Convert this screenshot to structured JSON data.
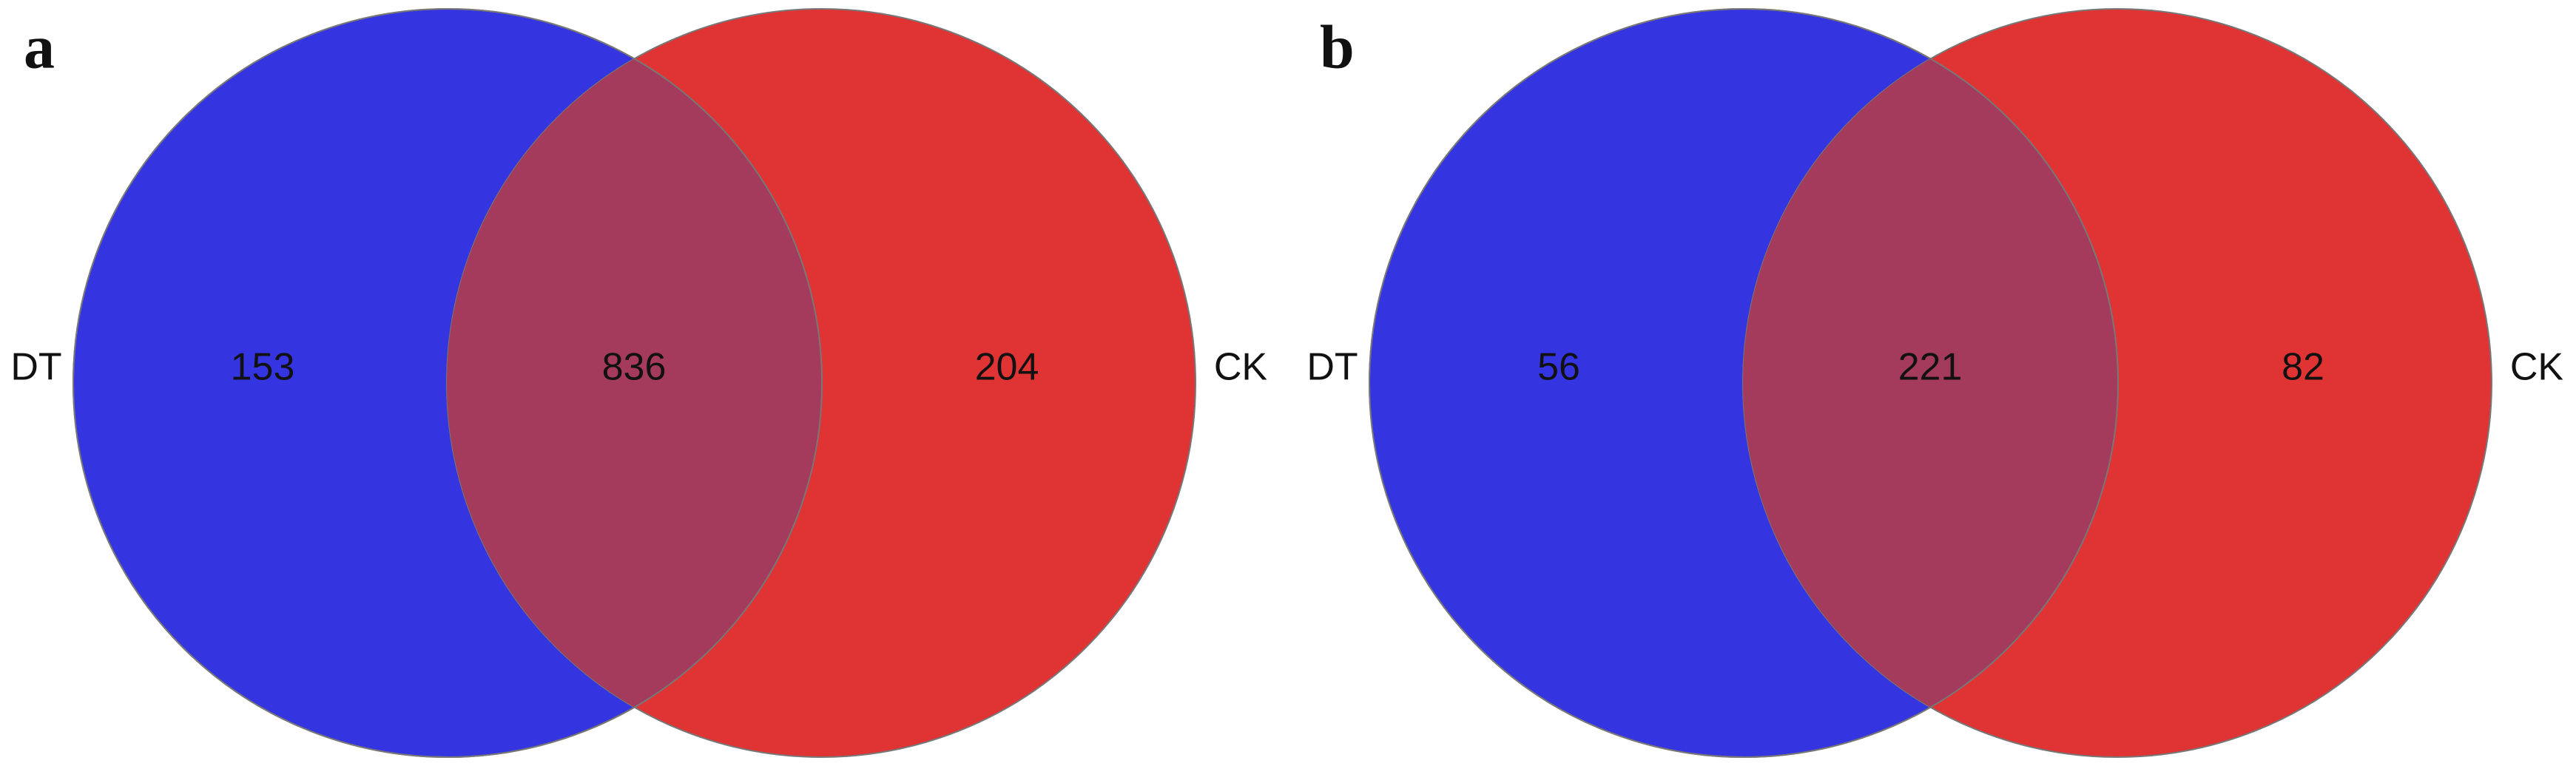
{
  "chart_data": [
    {
      "type": "venn",
      "panel": "a",
      "overlap": 836,
      "overlap_color": "#a43a5c",
      "sets": [
        {
          "name": "DT",
          "color": "#3434e0",
          "only": 153
        },
        {
          "name": "CK",
          "color": "#e03434",
          "only": 204
        }
      ]
    },
    {
      "type": "venn",
      "panel": "b",
      "overlap": 221,
      "overlap_color": "#a43a5c",
      "sets": [
        {
          "name": "DT",
          "color": "#3434e0",
          "only": 56
        },
        {
          "name": "CK",
          "color": "#e03434",
          "only": 82
        }
      ]
    }
  ]
}
